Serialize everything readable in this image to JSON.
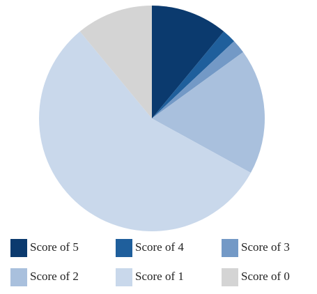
{
  "chart_data": {
    "type": "pie",
    "categories": [
      "Score of 5",
      "Score of 4",
      "Score of 3",
      "Score of 2",
      "Score of 1",
      "Score of 0"
    ],
    "values": [
      11,
      2,
      2,
      18,
      56,
      11
    ],
    "colors": [
      "#0b3a6e",
      "#1f5f9c",
      "#7399c6",
      "#a9c0dd",
      "#c9d8eb",
      "#d4d4d4"
    ]
  }
}
